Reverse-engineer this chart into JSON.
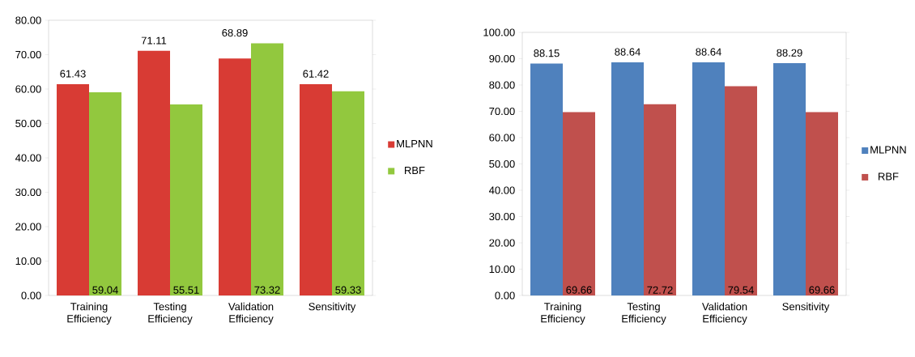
{
  "chart_data": [
    {
      "type": "bar",
      "categories": [
        "Training Efficiency",
        "Testing Efficiency",
        "Validation Efficiency",
        "Sensitivity"
      ],
      "series": [
        {
          "name": "MLPNN",
          "color": "#d83b34",
          "values": [
            61.43,
            71.11,
            68.89,
            61.42
          ]
        },
        {
          "name": "RBF",
          "color": "#92c83e",
          "values": [
            59.04,
            55.51,
            73.32,
            59.33
          ]
        }
      ],
      "ylim": [
        0,
        80
      ],
      "yticks": [
        {
          "value": 0,
          "label": "0.00"
        },
        {
          "value": 10,
          "label": "10.00"
        },
        {
          "value": 20,
          "label": "20.00"
        },
        {
          "value": 30,
          "label": "30.00"
        },
        {
          "value": 40,
          "label": "40.00"
        },
        {
          "value": 50,
          "label": "50.00"
        },
        {
          "value": 60,
          "label": "60.00"
        },
        {
          "value": 70,
          "label": "70.00"
        },
        {
          "value": 80,
          "label": "80.00"
        }
      ],
      "data_labels": true,
      "legend": "right"
    },
    {
      "type": "bar",
      "categories": [
        "Training Efficiency",
        "Testing Efficiency",
        "Validation Efficiency",
        "Sensitivity"
      ],
      "series": [
        {
          "name": "MLPNN",
          "color": "#4f81bd",
          "values": [
            88.15,
            88.64,
            88.64,
            88.29
          ]
        },
        {
          "name": "RBF",
          "color": "#c0504d",
          "values": [
            69.66,
            72.72,
            79.54,
            69.66
          ]
        }
      ],
      "ylim": [
        0,
        100
      ],
      "yticks": [
        {
          "value": 0,
          "label": "0.00"
        },
        {
          "value": 10,
          "label": "10.00"
        },
        {
          "value": 20,
          "label": "20.00"
        },
        {
          "value": 30,
          "label": "30.00"
        },
        {
          "value": 40,
          "label": "40.00"
        },
        {
          "value": 50,
          "label": "50.00"
        },
        {
          "value": 60,
          "label": "60.00"
        },
        {
          "value": 70,
          "label": "70.00"
        },
        {
          "value": 80,
          "label": "80.00"
        },
        {
          "value": 90,
          "label": "90.00"
        },
        {
          "value": 100,
          "label": "100.00"
        }
      ],
      "data_labels": true,
      "legend": "right"
    }
  ]
}
